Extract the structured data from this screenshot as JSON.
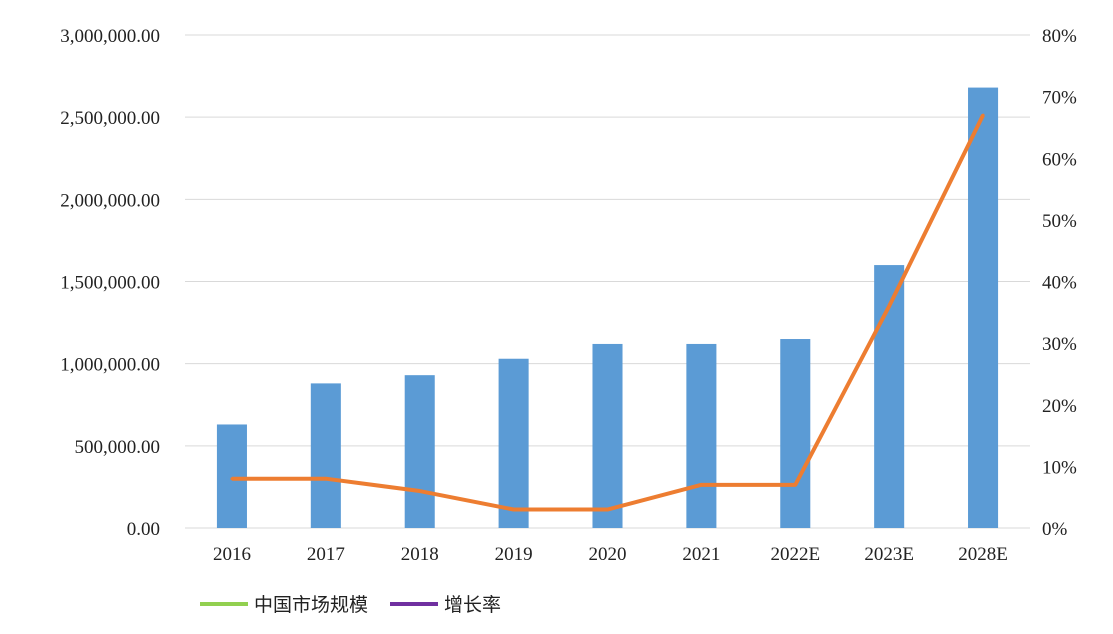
{
  "chart_data": {
    "type": "bar",
    "title": "",
    "xlabel": "",
    "ylabel": "",
    "categories": [
      "2016",
      "2017",
      "2018",
      "2019",
      "2020",
      "2021",
      "2022E",
      "2023E",
      "2028E"
    ],
    "y_left_ticks": [
      "3,000,000.00",
      "2,500,000.00",
      "2,000,000.00",
      "1,500,000.00",
      "1,000,000.00",
      "500,000.00",
      "0.00"
    ],
    "y_right_ticks": [
      "80%",
      "70%",
      "60%",
      "50%",
      "40%",
      "30%",
      "20%",
      "10%",
      "0%"
    ],
    "ylim_left": [
      0,
      3000000
    ],
    "ylim_right": [
      0,
      0.8
    ],
    "series": [
      {
        "name": "中国市场规模",
        "type": "bar",
        "axis": "left",
        "values": [
          630000,
          880000,
          930000,
          1030000,
          1120000,
          1120000,
          1150000,
          1600000,
          2680000
        ]
      },
      {
        "name": "增长率",
        "type": "line",
        "axis": "right",
        "values": [
          0.08,
          0.08,
          0.06,
          0.03,
          0.03,
          0.07,
          0.07,
          0.36,
          0.67
        ]
      }
    ],
    "legend_position": "bottom",
    "grid": true,
    "colors": {
      "bar": "#5b9bd5",
      "line": "#ed7d31",
      "legend_bar": "#92d050",
      "legend_line": "#7030a0",
      "grid": "#d9d9d9"
    }
  }
}
